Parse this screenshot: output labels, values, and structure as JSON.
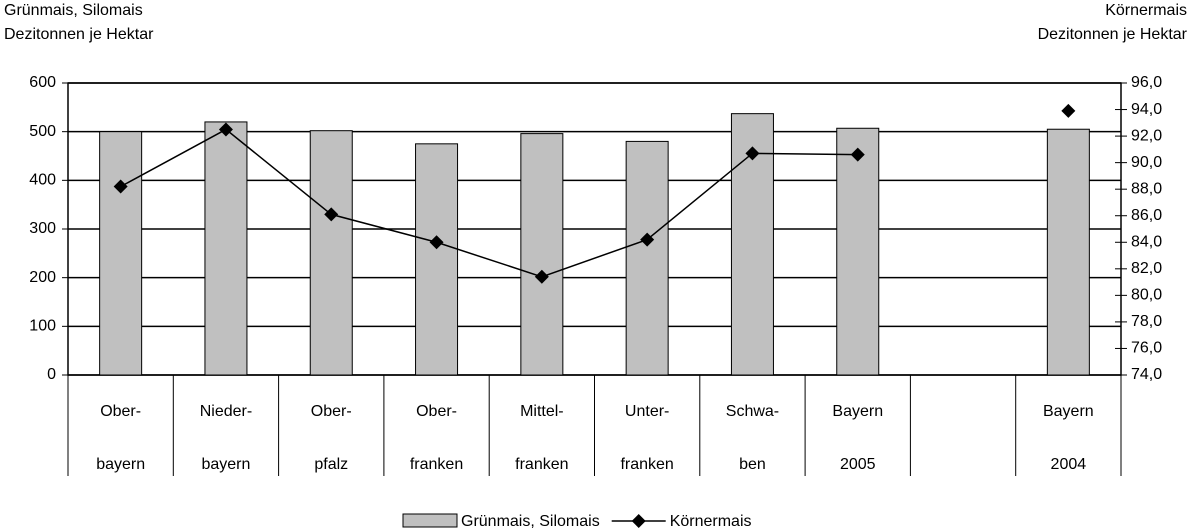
{
  "chart_data": {
    "type": "bar_line",
    "ylabel_lines": [
      "Grünmais, Silomais",
      "Dezitonnen je Hektar"
    ],
    "y2label_lines": [
      "Körnermais",
      "Dezitonnen je Hektar"
    ],
    "categories": [
      [
        "Ober-",
        "bayern"
      ],
      [
        "Nieder-",
        "bayern"
      ],
      [
        "Ober-",
        "pfalz"
      ],
      [
        "Ober-",
        "franken"
      ],
      [
        "Mittel-",
        "franken"
      ],
      [
        "Unter-",
        "franken"
      ],
      [
        "Schwa-",
        "ben"
      ],
      [
        "Bayern",
        "2005"
      ],
      null,
      [
        "Bayern",
        "2004"
      ]
    ],
    "series": [
      {
        "name": "Grünmais, Silomais",
        "color": "#c0c0c0",
        "kind": "bar",
        "values": [
          500,
          520,
          502,
          475,
          496,
          480,
          537,
          507,
          null,
          505
        ]
      },
      {
        "name": "Körnermais",
        "color": "#000000",
        "kind": "line",
        "axis": "y2",
        "values": [
          88.2,
          92.5,
          86.1,
          84.0,
          81.4,
          84.2,
          90.7,
          90.6,
          null,
          93.9
        ]
      }
    ],
    "ylim": [
      0,
      600
    ],
    "yticks": [
      0,
      100,
      200,
      300,
      400,
      500,
      600
    ],
    "y2lim": [
      74,
      96
    ],
    "y2ticks": [
      {
        "value": 74,
        "label": "74,0"
      },
      {
        "value": 76,
        "label": "76,0"
      },
      {
        "value": 78,
        "label": "78,0"
      },
      {
        "value": 80,
        "label": "80,0"
      },
      {
        "value": 82,
        "label": "82,0"
      },
      {
        "value": 84,
        "label": "84,0"
      },
      {
        "value": 86,
        "label": "86,0"
      },
      {
        "value": 88,
        "label": "88,0"
      },
      {
        "value": 90,
        "label": "90,0"
      },
      {
        "value": 92,
        "label": "92,0"
      },
      {
        "value": 94,
        "label": "94,0"
      },
      {
        "value": 96,
        "label": "96,0"
      }
    ],
    "grid": true
  }
}
